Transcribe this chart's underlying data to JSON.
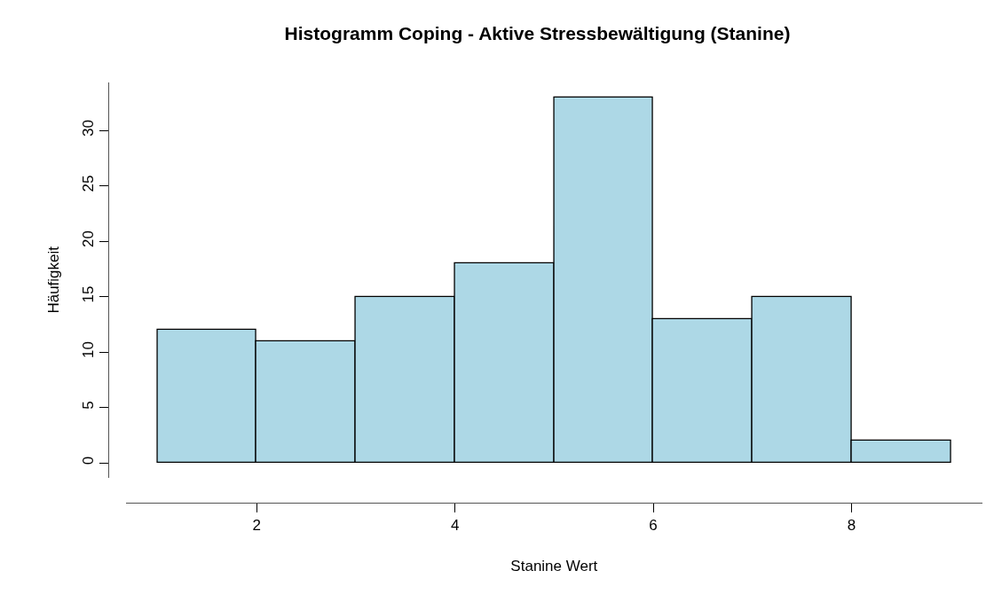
{
  "chart_data": {
    "type": "histogram",
    "title": "Histogramm Coping - Aktive Stressbewältigung (Stanine)",
    "xlabel": "Stanine Wert",
    "ylabel": "Häufigkeit",
    "bins": [
      1,
      2,
      3,
      4,
      5,
      6,
      7,
      8,
      9
    ],
    "values": [
      12,
      11,
      15,
      18,
      33,
      13,
      15,
      2
    ],
    "color": "#add8e6",
    "xlim": [
      0.68,
      9.32
    ],
    "xticks": [
      2,
      4,
      6,
      8
    ],
    "ylim": [
      -1.32,
      34.32
    ],
    "yticks": [
      0,
      5,
      10,
      15,
      20,
      25,
      30
    ],
    "grid": false,
    "legend": false
  }
}
